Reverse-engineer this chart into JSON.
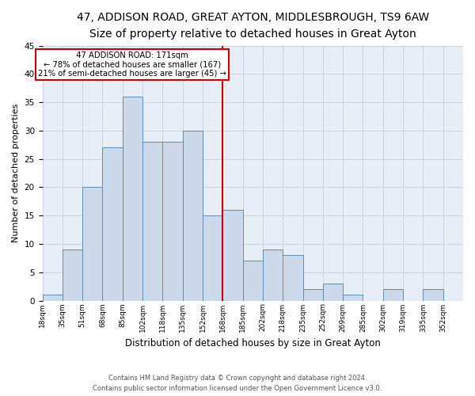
{
  "title": "47, ADDISON ROAD, GREAT AYTON, MIDDLESBROUGH, TS9 6AW",
  "subtitle": "Size of property relative to detached houses in Great Ayton",
  "xlabel": "Distribution of detached houses by size in Great Ayton",
  "ylabel": "Number of detached properties",
  "footer_line1": "Contains HM Land Registry data © Crown copyright and database right 2024.",
  "footer_line2": "Contains public sector information licensed under the Open Government Licence v3.0.",
  "bin_labels": [
    "18sqm",
    "35sqm",
    "51sqm",
    "68sqm",
    "85sqm",
    "102sqm",
    "118sqm",
    "135sqm",
    "152sqm",
    "168sqm",
    "185sqm",
    "202sqm",
    "218sqm",
    "235sqm",
    "252sqm",
    "269sqm",
    "285sqm",
    "302sqm",
    "319sqm",
    "335sqm",
    "352sqm"
  ],
  "bar_values": [
    1,
    9,
    20,
    27,
    36,
    28,
    28,
    30,
    15,
    16,
    7,
    9,
    8,
    2,
    3,
    1,
    0,
    2,
    0,
    2,
    0
  ],
  "bar_color": "#ccd9ea",
  "bar_edge_color": "#5b8db8",
  "property_line_bin": 9,
  "property_label": "47 ADDISON ROAD: 171sqm",
  "annotation_line1": "← 78% of detached houses are smaller (167)",
  "annotation_line2": "21% of semi-detached houses are larger (45) →",
  "annotation_box_color": "#ffffff",
  "annotation_box_edge": "#cc0000",
  "vline_color": "#cc0000",
  "ylim": [
    0,
    45
  ],
  "yticks": [
    0,
    5,
    10,
    15,
    20,
    25,
    30,
    35,
    40,
    45
  ],
  "background_color": "#ffffff",
  "plot_bg_color": "#e8eef5",
  "grid_color": "#c8d4e4",
  "title_fontsize": 10,
  "subtitle_fontsize": 9,
  "xlabel_fontsize": 8.5,
  "ylabel_fontsize": 8
}
